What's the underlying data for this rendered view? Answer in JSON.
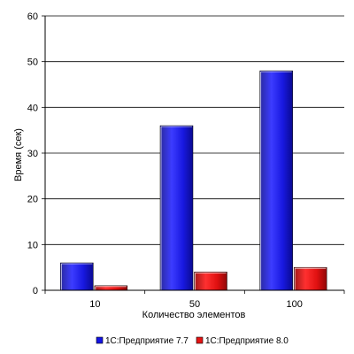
{
  "chart_data": {
    "type": "bar",
    "title": "",
    "xlabel": "Количество элементов",
    "ylabel": "Время (сек)",
    "categories": [
      "10",
      "50",
      "100"
    ],
    "ylim": [
      0,
      60
    ],
    "yticks": [
      0,
      10,
      20,
      30,
      40,
      50,
      60
    ],
    "grid": true,
    "legend_position": "bottom",
    "series": [
      {
        "name": "1С:Предприятие 7.7",
        "values": [
          6,
          36,
          48
        ],
        "color": "#1414e6"
      },
      {
        "name": "1С:Предприятие 8.0",
        "values": [
          1,
          4,
          5
        ],
        "color": "#e61414"
      }
    ]
  }
}
